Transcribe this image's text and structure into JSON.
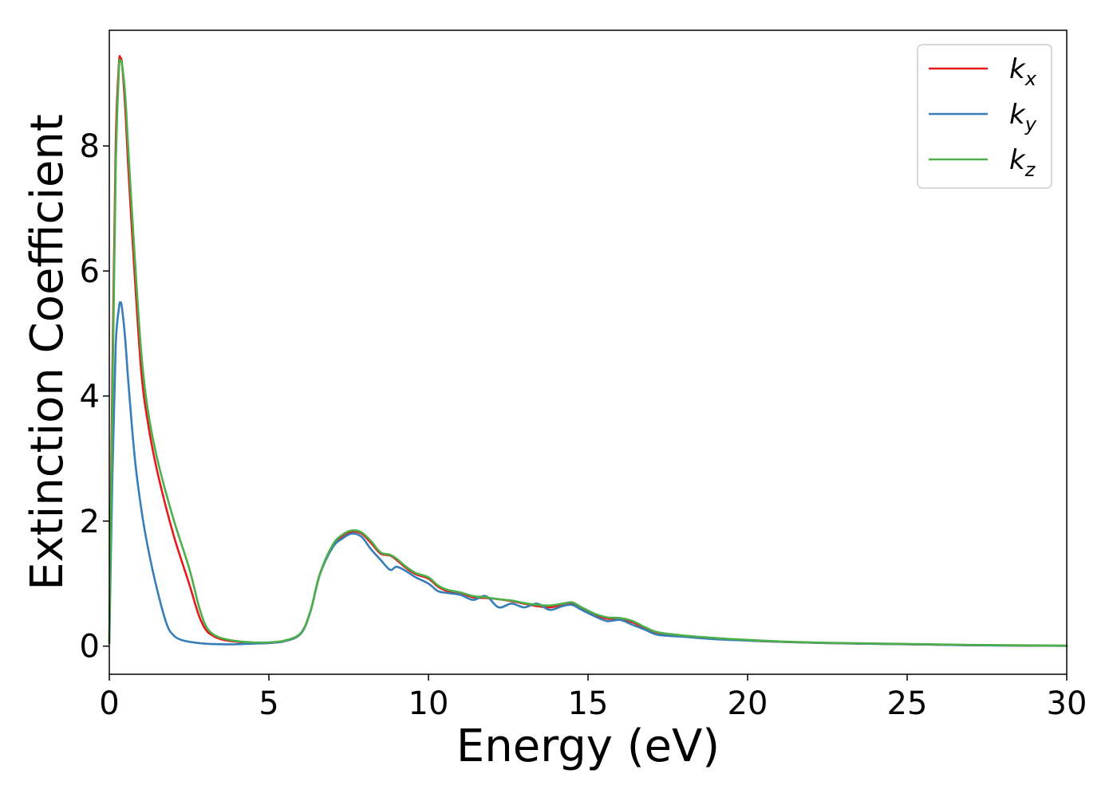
{
  "chart_data": {
    "type": "line",
    "xlabel": "Energy (eV)",
    "ylabel": "Extinction Coefficient",
    "xlim": [
      0,
      30
    ],
    "ylim": [
      -0.45,
      9.85
    ],
    "xticks": [
      0,
      5,
      10,
      15,
      20,
      25,
      30
    ],
    "yticks": [
      0,
      2,
      4,
      6,
      8
    ],
    "grid": false,
    "legend_position": "top-right",
    "series": [
      {
        "name": "k_x",
        "legend_base": "k",
        "legend_sub": "x",
        "color": "#e41a1c",
        "x": [
          0,
          0.1,
          0.2,
          0.3,
          0.35,
          0.4,
          0.5,
          0.6,
          0.8,
          1.0,
          1.2,
          1.5,
          2.0,
          2.5,
          2.8,
          3.0,
          3.2,
          3.5,
          4.0,
          4.5,
          5.0,
          5.5,
          6.0,
          6.3,
          6.6,
          7.0,
          7.3,
          7.6,
          7.9,
          8.2,
          8.5,
          8.8,
          9.0,
          9.3,
          9.6,
          10.0,
          10.3,
          10.6,
          11.0,
          11.4,
          11.8,
          12.2,
          12.6,
          13.0,
          13.4,
          13.8,
          14.2,
          14.5,
          14.8,
          15.2,
          15.6,
          16.0,
          16.4,
          16.8,
          17.2,
          18.0,
          19.0,
          20.0,
          21.0,
          22.0,
          23.0,
          25.0,
          27.0,
          30.0
        ],
        "y": [
          0.05,
          4.5,
          8.0,
          9.3,
          9.4,
          9.3,
          8.6,
          7.6,
          5.9,
          4.4,
          3.6,
          2.8,
          1.8,
          1.0,
          0.5,
          0.28,
          0.18,
          0.11,
          0.07,
          0.05,
          0.05,
          0.08,
          0.2,
          0.55,
          1.15,
          1.6,
          1.75,
          1.83,
          1.8,
          1.65,
          1.48,
          1.45,
          1.38,
          1.25,
          1.15,
          1.08,
          0.95,
          0.88,
          0.85,
          0.78,
          0.77,
          0.75,
          0.72,
          0.68,
          0.64,
          0.62,
          0.66,
          0.68,
          0.6,
          0.5,
          0.44,
          0.43,
          0.38,
          0.28,
          0.2,
          0.16,
          0.12,
          0.09,
          0.07,
          0.055,
          0.045,
          0.03,
          0.015,
          0.005
        ]
      },
      {
        "name": "k_y",
        "legend_base": "k",
        "legend_sub": "y",
        "color": "#377eb8",
        "x": [
          0,
          0.1,
          0.2,
          0.3,
          0.35,
          0.4,
          0.5,
          0.6,
          0.8,
          1.0,
          1.2,
          1.5,
          1.8,
          2.0,
          2.2,
          2.5,
          3.0,
          3.5,
          4.0,
          4.5,
          5.0,
          5.5,
          6.0,
          6.3,
          6.6,
          7.0,
          7.3,
          7.6,
          7.9,
          8.2,
          8.5,
          8.8,
          9.0,
          9.3,
          9.6,
          10.0,
          10.3,
          10.6,
          11.0,
          11.4,
          11.8,
          12.2,
          12.6,
          13.0,
          13.4,
          13.8,
          14.2,
          14.5,
          14.8,
          15.2,
          15.6,
          16.0,
          16.4,
          16.8,
          17.2,
          18.0,
          19.0,
          20.0,
          21.0,
          22.0,
          23.0,
          25.0,
          27.0,
          30.0
        ],
        "y": [
          0.05,
          2.8,
          4.8,
          5.4,
          5.5,
          5.4,
          4.9,
          4.2,
          3.0,
          2.2,
          1.6,
          0.9,
          0.35,
          0.18,
          0.11,
          0.07,
          0.04,
          0.03,
          0.03,
          0.04,
          0.05,
          0.08,
          0.2,
          0.55,
          1.15,
          1.58,
          1.72,
          1.8,
          1.75,
          1.55,
          1.38,
          1.22,
          1.27,
          1.2,
          1.1,
          1.0,
          0.88,
          0.85,
          0.82,
          0.74,
          0.8,
          0.62,
          0.68,
          0.62,
          0.68,
          0.58,
          0.64,
          0.66,
          0.58,
          0.48,
          0.4,
          0.42,
          0.34,
          0.26,
          0.18,
          0.15,
          0.11,
          0.09,
          0.07,
          0.055,
          0.045,
          0.03,
          0.015,
          0.005
        ]
      },
      {
        "name": "k_z",
        "legend_base": "k",
        "legend_sub": "z",
        "color": "#4daf4a",
        "x": [
          0,
          0.1,
          0.2,
          0.3,
          0.35,
          0.4,
          0.5,
          0.6,
          0.8,
          1.0,
          1.2,
          1.5,
          2.0,
          2.5,
          2.8,
          3.0,
          3.2,
          3.5,
          4.0,
          4.5,
          5.0,
          5.5,
          6.0,
          6.3,
          6.6,
          7.0,
          7.3,
          7.6,
          7.9,
          8.2,
          8.5,
          8.8,
          9.0,
          9.3,
          9.6,
          10.0,
          10.3,
          10.6,
          11.0,
          11.4,
          11.8,
          12.2,
          12.6,
          13.0,
          13.4,
          13.8,
          14.2,
          14.5,
          14.8,
          15.2,
          15.6,
          16.0,
          16.4,
          16.8,
          17.2,
          18.0,
          19.0,
          20.0,
          21.0,
          22.0,
          23.0,
          25.0,
          27.0,
          30.0
        ],
        "y": [
          0.05,
          4.0,
          7.6,
          9.2,
          9.35,
          9.3,
          8.8,
          7.9,
          6.2,
          4.7,
          3.8,
          3.0,
          2.05,
          1.25,
          0.65,
          0.35,
          0.21,
          0.13,
          0.08,
          0.06,
          0.06,
          0.09,
          0.21,
          0.56,
          1.16,
          1.62,
          1.78,
          1.85,
          1.82,
          1.68,
          1.5,
          1.46,
          1.4,
          1.27,
          1.17,
          1.1,
          0.97,
          0.9,
          0.86,
          0.8,
          0.78,
          0.75,
          0.73,
          0.69,
          0.66,
          0.65,
          0.68,
          0.7,
          0.62,
          0.52,
          0.46,
          0.45,
          0.4,
          0.3,
          0.22,
          0.17,
          0.13,
          0.1,
          0.075,
          0.06,
          0.05,
          0.035,
          0.02,
          0.008
        ]
      }
    ]
  }
}
